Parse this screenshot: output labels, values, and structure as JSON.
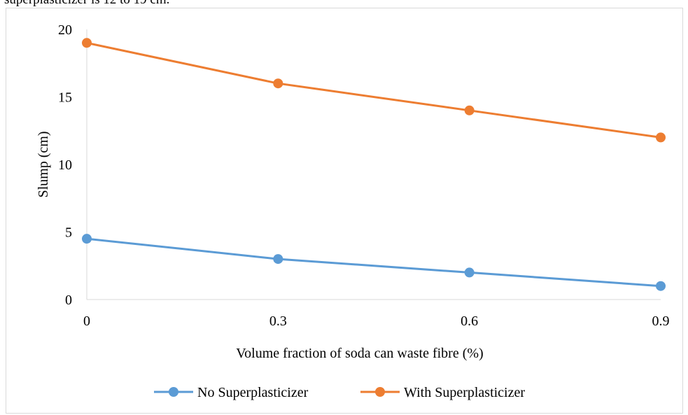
{
  "page_text": {
    "caption_fragment": "superplasticizer is 12 to 19 cm."
  },
  "chart_data": {
    "type": "line",
    "title": "",
    "xlabel": "Volume fraction of soda can waste fibre (%)",
    "ylabel": "Slump (cm)",
    "categories": [
      "0",
      "0.3",
      "0.6",
      "0.9"
    ],
    "y_ticks": [
      "0",
      "5",
      "10",
      "15",
      "20"
    ],
    "ylim": [
      0,
      20
    ],
    "grid": false,
    "legend_position": "bottom",
    "series": [
      {
        "name": "No Superplasticizer",
        "color": "#5b9bd5",
        "values": [
          4.5,
          3,
          2,
          1
        ]
      },
      {
        "name": "With Superplasticizer",
        "color": "#ed7d31",
        "values": [
          19,
          16,
          14,
          12
        ]
      }
    ]
  }
}
